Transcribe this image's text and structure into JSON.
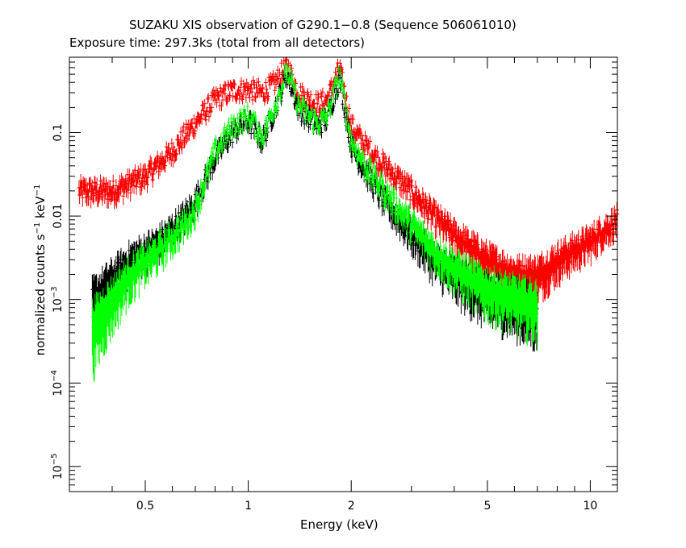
{
  "chart_data": {
    "type": "scatter",
    "title": "SUZAKU XIS observation of G290.1−0.8 (Sequence 506061010)",
    "subtitle": "Exposure time: 297.3ks (total from all detectors)",
    "xlabel": "Energy (keV)",
    "ylabel_main": "normalized counts s",
    "ylabel_sup1": "−1",
    "ylabel_mid": " keV",
    "ylabel_sup2": "−1",
    "x_scale": "log",
    "y_scale": "log",
    "xlim": [
      0.3,
      12.0
    ],
    "ylim": [
      5e-06,
      0.8
    ],
    "x_ticks": [
      {
        "value": 0.5,
        "label": "0.5"
      },
      {
        "value": 1,
        "label": "1"
      },
      {
        "value": 2,
        "label": "2"
      },
      {
        "value": 5,
        "label": "5"
      },
      {
        "value": 10,
        "label": "10"
      }
    ],
    "y_ticks": [
      {
        "value": 0.1,
        "label": "0.1",
        "sup": ""
      },
      {
        "value": 0.01,
        "label": "0.01",
        "sup": ""
      },
      {
        "value": 0.001,
        "label": "10",
        "sup": "−3"
      },
      {
        "value": 0.0001,
        "label": "10",
        "sup": "−4"
      },
      {
        "value": 1e-05,
        "label": "10",
        "sup": "−5"
      }
    ],
    "series": [
      {
        "color": "#ff0000",
        "x": [
          0.32,
          0.4,
          0.5,
          0.6,
          0.7,
          0.8,
          0.9,
          1.0,
          1.1,
          1.2,
          1.3,
          1.4,
          1.5,
          1.6,
          1.7,
          1.85,
          2.0,
          2.2,
          2.5,
          3.0,
          3.5,
          4.0,
          5.0,
          6.0,
          7.0,
          8.0,
          9.0,
          10.0,
          11.0,
          12.0
        ],
        "y": [
          0.02,
          0.02,
          0.03,
          0.06,
          0.13,
          0.25,
          0.32,
          0.33,
          0.3,
          0.4,
          0.65,
          0.3,
          0.25,
          0.22,
          0.25,
          0.6,
          0.12,
          0.07,
          0.04,
          0.02,
          0.01,
          0.006,
          0.003,
          0.002,
          0.002,
          0.003,
          0.004,
          0.005,
          0.007,
          0.009
        ]
      },
      {
        "color": "#000000",
        "x": [
          0.35,
          0.45,
          0.55,
          0.65,
          0.7,
          0.8,
          0.9,
          1.0,
          1.1,
          1.2,
          1.3,
          1.4,
          1.5,
          1.6,
          1.7,
          1.85,
          2.0,
          2.2,
          2.5,
          3.0,
          3.5,
          4.0,
          4.5,
          5.0,
          6.0,
          7.0
        ],
        "y": [
          0.001,
          0.003,
          0.005,
          0.01,
          0.015,
          0.05,
          0.1,
          0.14,
          0.08,
          0.2,
          0.5,
          0.2,
          0.15,
          0.12,
          0.15,
          0.45,
          0.07,
          0.035,
          0.015,
          0.006,
          0.003,
          0.002,
          0.0015,
          0.0012,
          0.001,
          0.0008
        ]
      },
      {
        "color": "#00ff00",
        "x": [
          0.35,
          0.45,
          0.55,
          0.65,
          0.7,
          0.8,
          0.9,
          1.0,
          1.1,
          1.2,
          1.3,
          1.4,
          1.5,
          1.6,
          1.7,
          1.85,
          2.0,
          2.2,
          2.5,
          3.0,
          3.5,
          4.0,
          4.5,
          5.0,
          6.0,
          7.0
        ],
        "y": [
          0.0005,
          0.002,
          0.004,
          0.008,
          0.012,
          0.06,
          0.12,
          0.16,
          0.09,
          0.22,
          0.55,
          0.22,
          0.16,
          0.13,
          0.16,
          0.5,
          0.08,
          0.04,
          0.02,
          0.008,
          0.004,
          0.0025,
          0.0018,
          0.0014,
          0.0011,
          0.0009
        ]
      }
    ]
  }
}
